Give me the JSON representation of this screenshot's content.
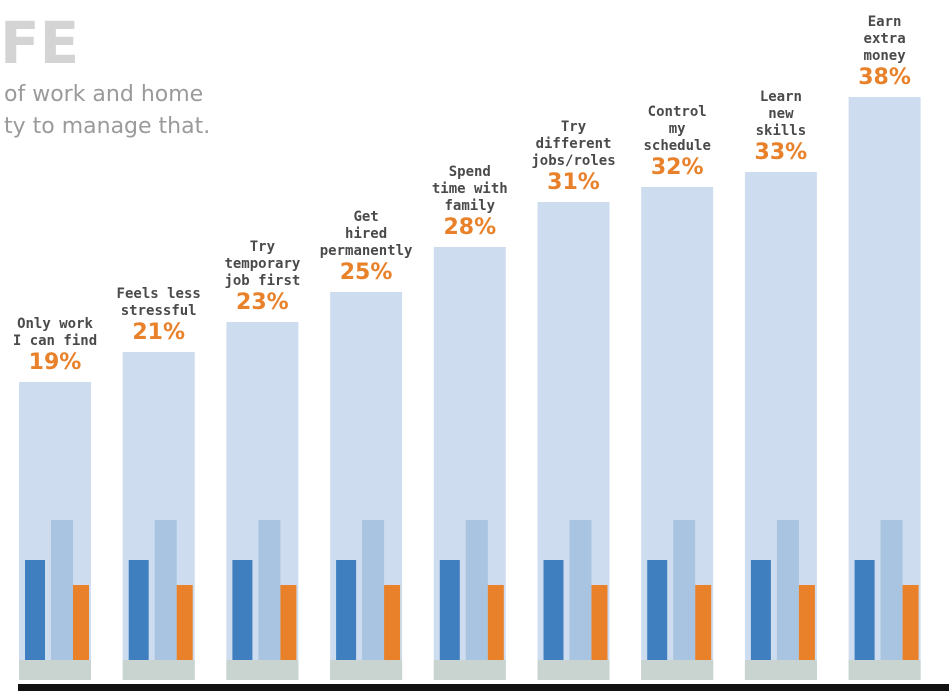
{
  "chart_data": {
    "type": "bar",
    "title": "FE",
    "subtitle_lines": [
      "of work and home",
      "ty to manage that."
    ],
    "categories": [
      "Only work\nI can find",
      "Feels less\nstressful",
      "Try\ntemporary\njob first",
      "Get\nhired\npermanently",
      "Spend\ntime with\nfamily",
      "Try\ndifferent\njobs/roles",
      "Control\nmy\nschedule",
      "Learn\nnew\nskills",
      "Earn\nextra\nmoney"
    ],
    "values": [
      19,
      21,
      23,
      25,
      28,
      31,
      32,
      33,
      38
    ],
    "value_labels": [
      "19%",
      "21%",
      "23%",
      "25%",
      "28%",
      "31%",
      "32%",
      "33%",
      "38%"
    ],
    "color": "#cddcee",
    "ylim": [
      0,
      40
    ]
  }
}
